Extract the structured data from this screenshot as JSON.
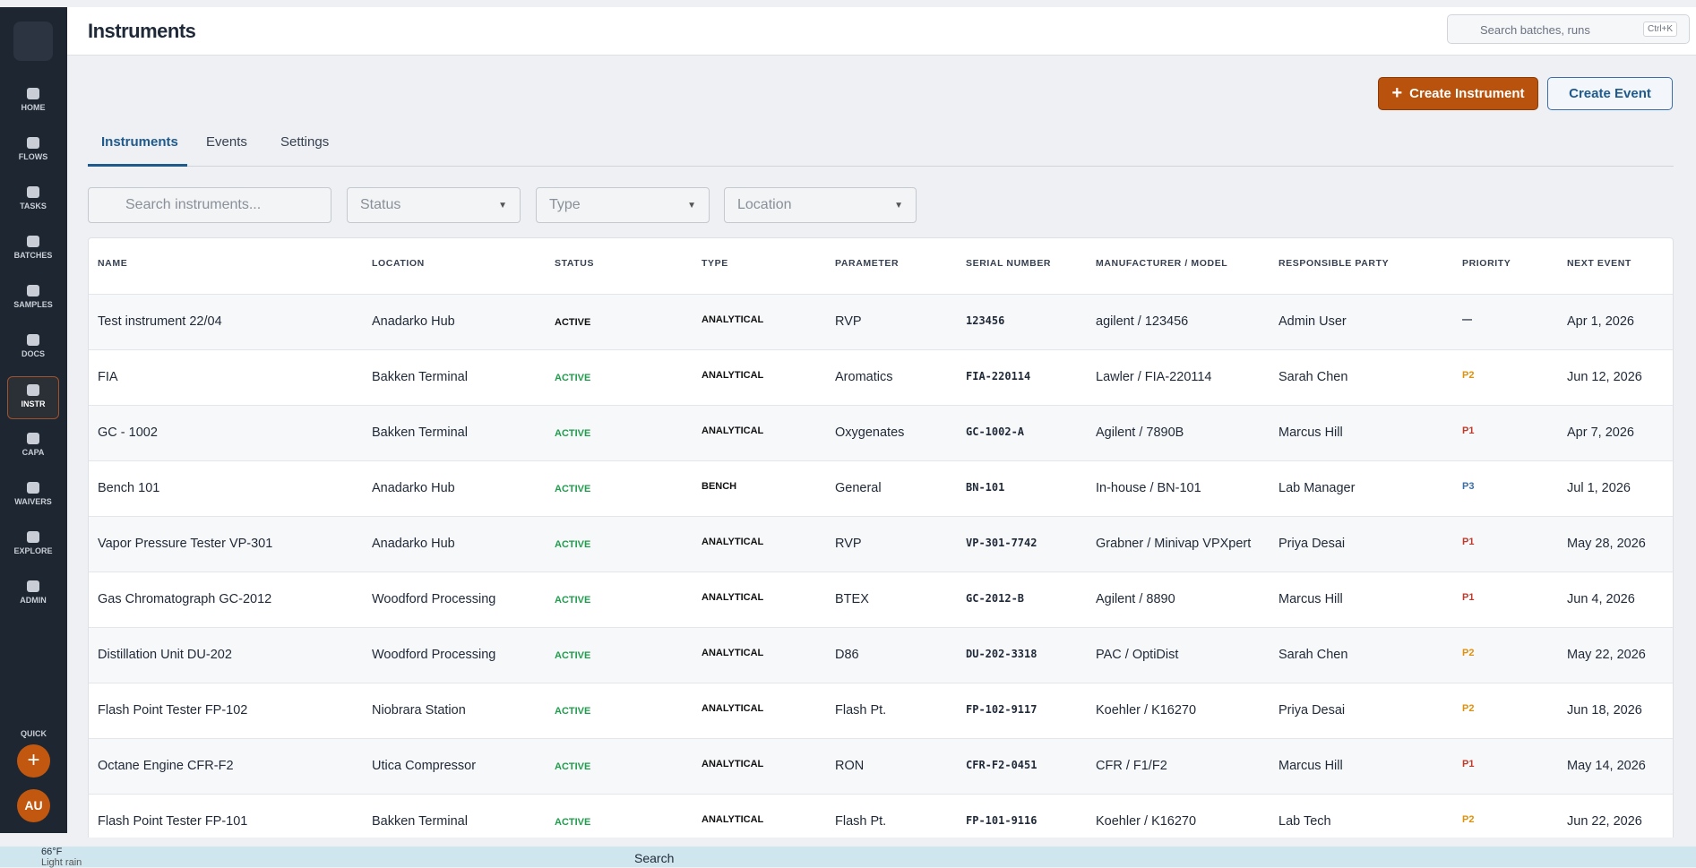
{
  "sidebar": {
    "items": [
      "HOME",
      "FLOWS",
      "TASKS",
      "BATCHES",
      "SAMPLES",
      "DOCS",
      "INSTR",
      "CAPA",
      "WAIVERS",
      "EXPLORE",
      "ADMIN"
    ],
    "quick_label": "QUICK",
    "avatar": "AU"
  },
  "header": {
    "title": "Instruments",
    "search_placeholder": "Search batches, runs",
    "shortcut": "Ctrl+K"
  },
  "actions": [
    "Create Instrument",
    "Create Event"
  ],
  "tabs": [
    "Instruments",
    "Events",
    "Settings"
  ],
  "filters": {
    "search_placeholder": "Search instruments...",
    "dropdowns": [
      "Status",
      "Type",
      "Location"
    ]
  },
  "table": {
    "columns": [
      "NAME",
      "LOCATION",
      "STATUS",
      "TYPE",
      "PARAMETER",
      "SERIAL NUMBER",
      "MANUFACTURER / MODEL",
      "RESPONSIBLE PARTY",
      "PRIORITY",
      "NEXT EVENT"
    ],
    "rows": [
      [
        "Test instrument 22/04",
        "Anadarko Hub",
        "ACTIVE",
        "ANALYTICAL",
        "RVP",
        "123456",
        "agilent / 123456",
        "Admin User",
        "—",
        "Apr 1, 2026"
      ],
      [
        "FIA",
        "Bakken Terminal",
        "ACTIVE",
        "ANALYTICAL",
        "Aromatics",
        "FIA-220114",
        "Lawler / FIA-220114",
        "Sarah Chen",
        "P2",
        "Jun 12, 2026"
      ],
      [
        "GC - 1002",
        "Bakken Terminal",
        "ACTIVE",
        "ANALYTICAL",
        "Oxygenates",
        "GC-1002-A",
        "Agilent / 7890B",
        "Marcus Hill",
        "P1",
        "Apr 7, 2026"
      ],
      [
        "Bench 101",
        "Anadarko Hub",
        "ACTIVE",
        "BENCH",
        "General",
        "BN-101",
        "In-house / BN-101",
        "Lab Manager",
        "P3",
        "Jul 1, 2026"
      ],
      [
        "Vapor Pressure Tester VP-301",
        "Anadarko Hub",
        "ACTIVE",
        "ANALYTICAL",
        "RVP",
        "VP-301-7742",
        "Grabner / Minivap VPXpert",
        "Priya Desai",
        "P1",
        "May 28, 2026"
      ],
      [
        "Gas Chromatograph GC-2012",
        "Woodford Processing",
        "ACTIVE",
        "ANALYTICAL",
        "BTEX",
        "GC-2012-B",
        "Agilent / 8890",
        "Marcus Hill",
        "P1",
        "Jun 4, 2026"
      ],
      [
        "Distillation Unit DU-202",
        "Woodford Processing",
        "ACTIVE",
        "ANALYTICAL",
        "D86",
        "DU-202-3318",
        "PAC / OptiDist",
        "Sarah Chen",
        "P2",
        "May 22, 2026"
      ],
      [
        "Flash Point Tester FP-102",
        "Niobrara Station",
        "ACTIVE",
        "ANALYTICAL",
        "Flash Pt.",
        "FP-102-9117",
        "Koehler / K16270",
        "Priya Desai",
        "P2",
        "Jun 18, 2026"
      ],
      [
        "Octane Engine CFR-F2",
        "Utica Compressor",
        "ACTIVE",
        "ANALYTICAL",
        "RON",
        "CFR-F2-0451",
        "CFR / F1/F2",
        "Marcus Hill",
        "P1",
        "May 14, 2026"
      ],
      [
        "Flash Point Tester FP-101",
        "Bakken Terminal",
        "ACTIVE",
        "ANALYTICAL",
        "Flash Pt.",
        "FP-101-9116",
        "Koehler / K16270",
        "Lab Tech",
        "P2",
        "Jun 22, 2026"
      ]
    ],
    "priority_colors": [
      "#111827",
      "#e0900a",
      "#c0392b",
      "#3b6ea8",
      "#c0392b",
      "#c0392b",
      "#e0900a",
      "#e0900a",
      "#c0392b",
      "#e0900a"
    ]
  },
  "taskbar": {
    "temperature": "66°F",
    "weather": "Light rain",
    "search": "Search"
  }
}
